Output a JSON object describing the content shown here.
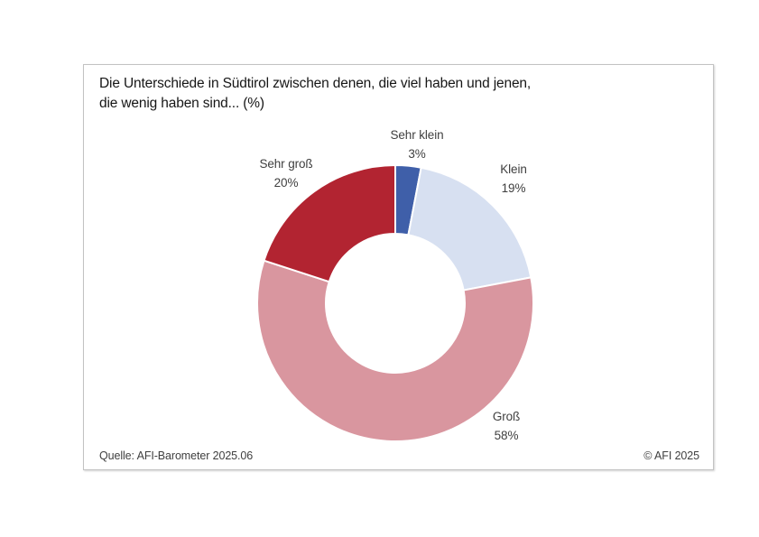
{
  "page": {
    "background_color": "#ffffff",
    "frame_border_color": "#c3c3c3"
  },
  "chart": {
    "title_line1": "Die Unterschiede in Südtirol zwischen denen, die viel haben und jenen,",
    "title_line2": "die wenig haben sind... (%)"
  },
  "chart_data": {
    "type": "pie",
    "subtype": "donut",
    "title": "Die Unterschiede in Südtirol zwischen denen, die viel haben und jenen, die wenig haben sind... (%)",
    "categories": [
      "Sehr klein",
      "Klein",
      "Groß",
      "Sehr groß"
    ],
    "values": [
      3,
      19,
      58,
      20
    ],
    "data_labels": [
      "3%",
      "19%",
      "58%",
      "20%"
    ],
    "unit": "%",
    "colors": [
      "#3f5fa9",
      "#d7e0f1",
      "#d9969f",
      "#b22431"
    ],
    "start_angle_deg": 0,
    "direction": "clockwise",
    "hole_ratio": 0.5,
    "legend": "none",
    "slice_border_color": "#ffffff",
    "source": "Quelle: AFI-Barometer 2025.06",
    "copyright": "© AFI 2025"
  }
}
